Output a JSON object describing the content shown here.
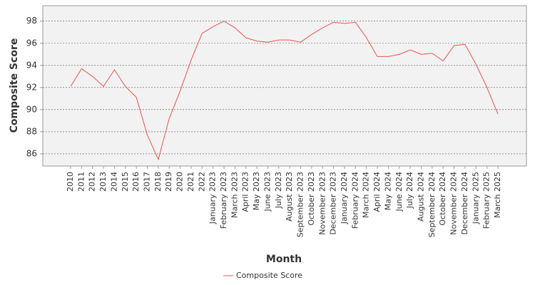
{
  "chart_data": {
    "type": "line",
    "x_label": "Month",
    "y_label": "Composite Score",
    "categories": [
      "2010",
      "2011",
      "2012",
      "2013",
      "2014",
      "2015",
      "2016",
      "2017",
      "2018",
      "2019",
      "2020",
      "2021",
      "2022",
      "January 2023",
      "February 2023",
      "March 2023",
      "April 2023",
      "May 2023",
      "June 2023",
      "July 2023",
      "August 2023",
      "September 2023",
      "October 2023",
      "November 2023",
      "December 2023",
      "January 2024",
      "February 2024",
      "March 2024",
      "April 2024",
      "May 2024",
      "June 2024",
      "July 2024",
      "August 2024",
      "September 2024",
      "October 2024",
      "November 2024",
      "December 2024",
      "January 2025",
      "February 2025",
      "March 2025"
    ],
    "series": [
      {
        "name": "Composite Score",
        "color": "#f05050",
        "values": [
          92.1,
          93.7,
          93.0,
          92.1,
          93.6,
          92.1,
          91.1,
          87.7,
          85.5,
          89.2,
          91.7,
          94.5,
          96.9,
          97.5,
          98.0,
          97.4,
          96.5,
          96.2,
          96.1,
          96.3,
          96.3,
          96.1,
          96.8,
          97.4,
          97.9,
          97.8,
          97.9,
          96.5,
          94.8,
          94.8,
          95.0,
          95.4,
          95.0,
          95.1,
          94.4,
          95.8,
          95.9,
          94.1,
          92.0,
          89.6
        ]
      }
    ],
    "ylim": [
      84.9,
      99.4
    ],
    "yticks": [
      86,
      88,
      90,
      92,
      94,
      96,
      98
    ],
    "grid": true,
    "legend": "bottom"
  }
}
